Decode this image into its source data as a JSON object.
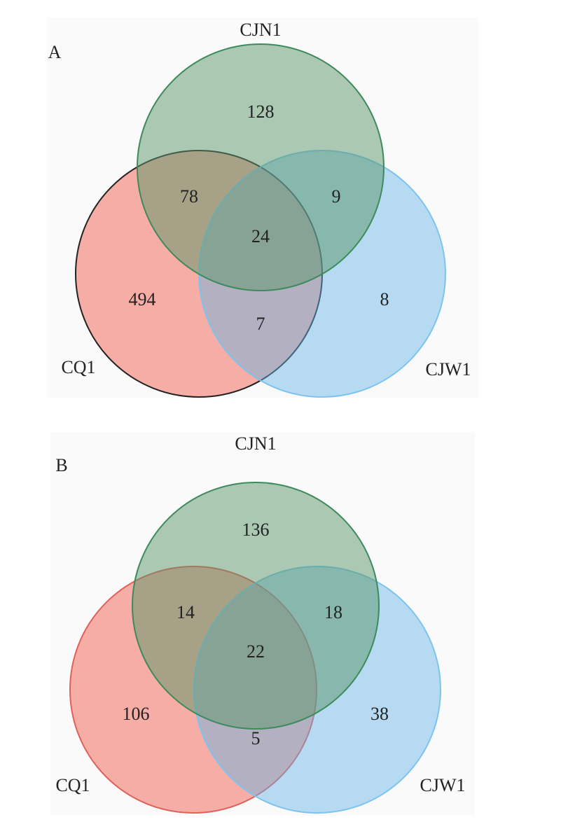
{
  "panels": [
    {
      "label": "A",
      "sets": [
        "CJN1",
        "CQ1",
        "CJW1"
      ],
      "regions": [
        128,
        78,
        9,
        24,
        494,
        7,
        8
      ]
    },
    {
      "label": "B",
      "sets": [
        "CJN1",
        "CQ1",
        "CJW1"
      ],
      "regions": [
        136,
        14,
        18,
        22,
        106,
        5,
        38
      ]
    }
  ]
}
